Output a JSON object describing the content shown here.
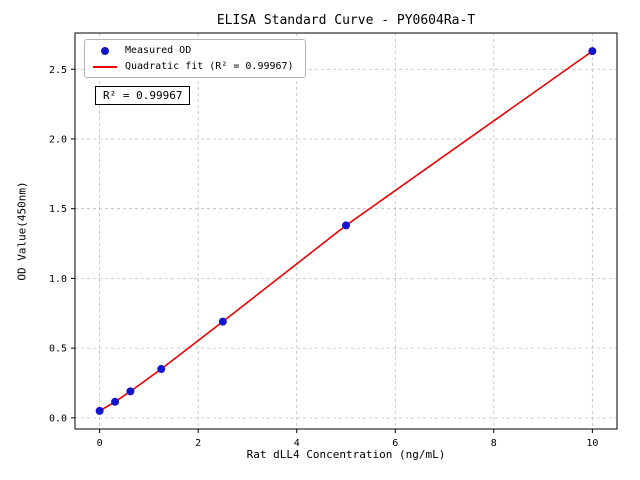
{
  "chart_data": {
    "type": "scatter",
    "title": "ELISA Standard Curve - PY0604Ra-T",
    "xlabel": "Rat dLL4 Concentration (ng/mL)",
    "ylabel": "OD Value(450nm)",
    "x": [
      0,
      0.3125,
      0.625,
      1.25,
      2.5,
      5,
      10
    ],
    "y": [
      0.05,
      0.115,
      0.19,
      0.35,
      0.69,
      1.38,
      2.63
    ],
    "xlim": [
      -0.5,
      10.5
    ],
    "ylim": [
      -0.08,
      2.76
    ],
    "xticks": [
      0,
      2,
      4,
      6,
      8,
      10
    ],
    "xtick_labels": [
      "0",
      "2",
      "4",
      "6",
      "8",
      "10"
    ],
    "yticks": [
      0,
      0.5,
      1.0,
      1.5,
      2.0,
      2.5
    ],
    "ytick_labels": [
      "0.0",
      "0.5",
      "1.0",
      "1.5",
      "2.0",
      "2.5"
    ],
    "grid": true,
    "legend_position": "upper left",
    "legend": [
      {
        "label": "Measured OD",
        "marker": "dot"
      },
      {
        "label": "Quadratic fit (R² = 0.99967)",
        "marker": "line"
      }
    ],
    "annotation": "R² = 0.99967",
    "colors": {
      "point": "#1414cc",
      "line": "#ee0000",
      "grid": "#bbbbbb",
      "spine": "#000000"
    }
  }
}
